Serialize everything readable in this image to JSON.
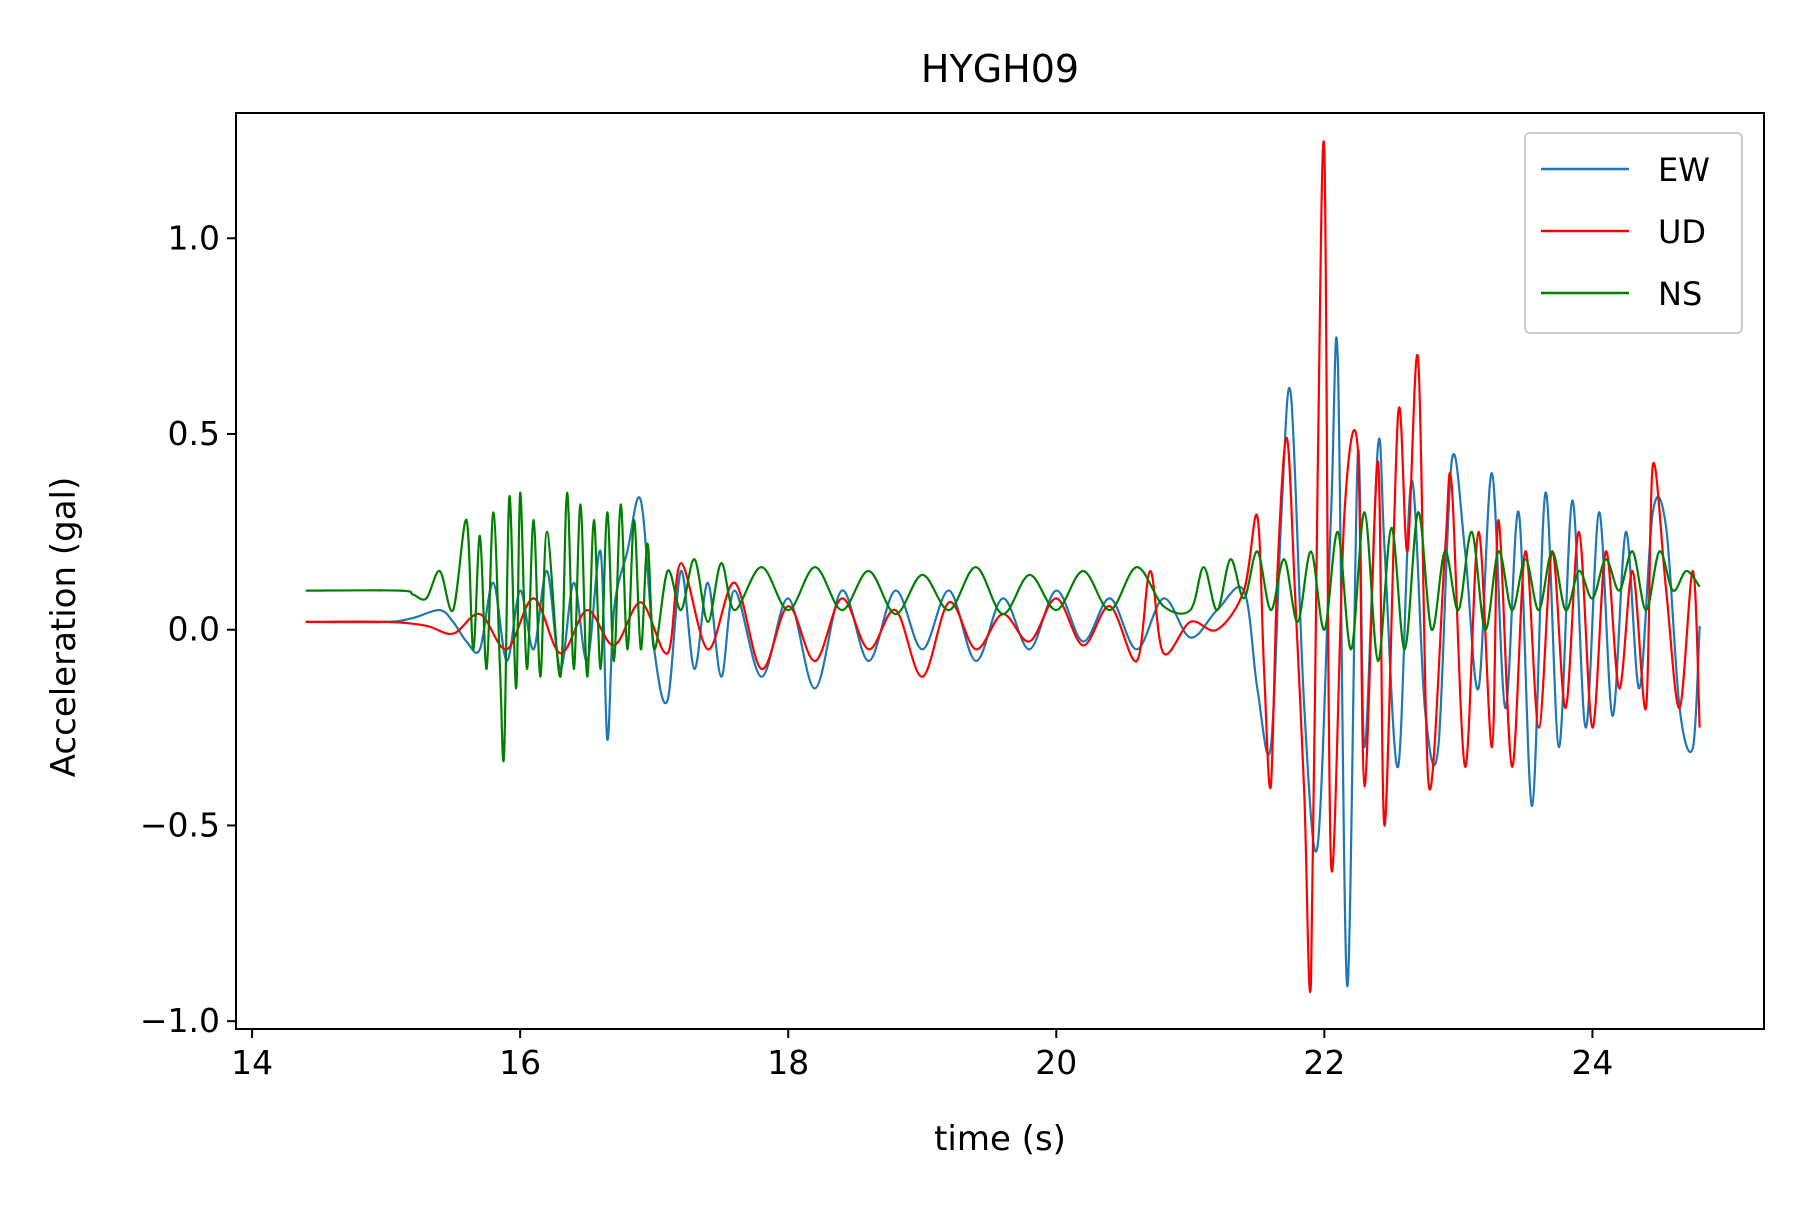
{
  "chart_data": {
    "type": "line",
    "title": "HYGH09",
    "xlabel": "time (s)",
    "ylabel": "Acceleration (gal)",
    "xlim": [
      13.88,
      25.28
    ],
    "ylim": [
      -1.02,
      1.32
    ],
    "xticks": [
      14,
      16,
      18,
      20,
      22,
      24
    ],
    "xtick_labels": [
      "14",
      "16",
      "18",
      "20",
      "22",
      "24"
    ],
    "yticks": [
      -1.0,
      -0.5,
      0.0,
      0.5,
      1.0
    ],
    "ytick_labels": [
      "−1.0",
      "−0.5",
      "0.0",
      "0.5",
      "1.0"
    ],
    "grid": false,
    "legend_position": "top-right",
    "series": [
      {
        "name": "EW",
        "color": "#1f77b4",
        "x": [
          14.4,
          15.0,
          15.2,
          15.4,
          15.5,
          15.6,
          15.7,
          15.8,
          15.9,
          16.0,
          16.1,
          16.2,
          16.3,
          16.4,
          16.5,
          16.6,
          16.65,
          16.7,
          16.8,
          16.9,
          17.0,
          17.1,
          17.2,
          17.3,
          17.4,
          17.5,
          17.6,
          17.8,
          18.0,
          18.2,
          18.4,
          18.6,
          18.8,
          19.0,
          19.2,
          19.4,
          19.6,
          19.8,
          20.0,
          20.2,
          20.4,
          20.6,
          20.8,
          21.0,
          21.2,
          21.4,
          21.5,
          21.6,
          21.68,
          21.75,
          21.85,
          21.95,
          22.05,
          22.1,
          22.17,
          22.25,
          22.3,
          22.4,
          22.45,
          22.55,
          22.65,
          22.75,
          22.85,
          22.95,
          23.05,
          23.15,
          23.25,
          23.35,
          23.45,
          23.55,
          23.65,
          23.75,
          23.85,
          23.95,
          24.05,
          24.15,
          24.25,
          24.35,
          24.45,
          24.55,
          24.65,
          24.75,
          24.8
        ],
        "y": [
          0.02,
          0.02,
          0.03,
          0.05,
          0.02,
          -0.03,
          -0.05,
          0.12,
          -0.08,
          0.1,
          -0.05,
          0.15,
          -0.1,
          0.12,
          -0.08,
          0.2,
          -0.28,
          0.05,
          0.2,
          0.33,
          -0.05,
          -0.18,
          0.15,
          -0.1,
          0.12,
          -0.12,
          0.1,
          -0.12,
          0.08,
          -0.15,
          0.1,
          -0.08,
          0.1,
          -0.05,
          0.1,
          -0.08,
          0.08,
          -0.05,
          0.1,
          -0.03,
          0.08,
          -0.05,
          0.08,
          -0.02,
          0.05,
          0.1,
          -0.15,
          -0.3,
          0.3,
          0.6,
          -0.2,
          -0.55,
          0.3,
          0.69,
          -0.91,
          0.45,
          -0.3,
          0.47,
          0.2,
          -0.35,
          0.38,
          -0.2,
          -0.3,
          0.43,
          0.2,
          -0.15,
          0.4,
          -0.2,
          0.3,
          -0.45,
          0.35,
          -0.3,
          0.33,
          -0.25,
          0.3,
          -0.22,
          0.25,
          -0.15,
          0.3,
          0.26,
          -0.2,
          -0.3,
          0.01
        ]
      },
      {
        "name": "UD",
        "color": "#ff0000",
        "x": [
          14.4,
          15.0,
          15.3,
          15.5,
          15.7,
          15.9,
          16.1,
          16.3,
          16.5,
          16.7,
          16.9,
          17.1,
          17.2,
          17.4,
          17.6,
          17.8,
          18.0,
          18.2,
          18.4,
          18.6,
          18.8,
          19.0,
          19.2,
          19.4,
          19.6,
          19.8,
          20.0,
          20.2,
          20.4,
          20.6,
          20.7,
          20.8,
          21.0,
          21.2,
          21.4,
          21.5,
          21.55,
          21.6,
          21.65,
          21.72,
          21.78,
          21.85,
          21.9,
          21.95,
          22.0,
          22.05,
          22.15,
          22.25,
          22.3,
          22.4,
          22.45,
          22.55,
          22.62,
          22.7,
          22.78,
          22.9,
          22.95,
          23.05,
          23.15,
          23.25,
          23.3,
          23.4,
          23.5,
          23.6,
          23.7,
          23.8,
          23.9,
          24.0,
          24.1,
          24.2,
          24.3,
          24.4,
          24.45,
          24.55,
          24.65,
          24.75,
          24.8
        ],
        "y": [
          0.02,
          0.02,
          0.01,
          -0.01,
          0.04,
          -0.05,
          0.08,
          -0.06,
          0.05,
          -0.04,
          0.07,
          -0.06,
          0.17,
          -0.05,
          0.12,
          -0.1,
          0.06,
          -0.08,
          0.08,
          -0.05,
          0.05,
          -0.12,
          0.07,
          -0.05,
          0.04,
          -0.03,
          0.08,
          -0.04,
          0.06,
          -0.08,
          0.15,
          -0.06,
          0.02,
          0.0,
          0.1,
          0.29,
          -0.1,
          -0.4,
          0.15,
          0.49,
          0.1,
          -0.42,
          -0.9,
          0.4,
          1.22,
          -0.6,
          0.3,
          0.46,
          -0.4,
          0.43,
          -0.5,
          0.55,
          0.2,
          0.69,
          -0.4,
          0.2,
          0.37,
          -0.35,
          0.25,
          -0.3,
          0.28,
          -0.35,
          0.2,
          -0.25,
          0.2,
          -0.2,
          0.25,
          -0.25,
          0.2,
          -0.15,
          0.15,
          -0.2,
          0.42,
          0.1,
          -0.2,
          0.15,
          -0.25
        ]
      },
      {
        "name": "NS",
        "color": "#008000",
        "x": [
          14.4,
          15.1,
          15.2,
          15.3,
          15.4,
          15.5,
          15.6,
          15.65,
          15.7,
          15.75,
          15.8,
          15.85,
          15.88,
          15.92,
          15.97,
          16.0,
          16.05,
          16.1,
          16.15,
          16.2,
          16.3,
          16.35,
          16.4,
          16.45,
          16.5,
          16.55,
          16.6,
          16.65,
          16.7,
          16.75,
          16.8,
          16.85,
          16.9,
          16.95,
          17.0,
          17.1,
          17.2,
          17.3,
          17.4,
          17.5,
          17.6,
          17.8,
          18.0,
          18.2,
          18.4,
          18.6,
          18.8,
          19.0,
          19.2,
          19.4,
          19.6,
          19.8,
          20.0,
          20.2,
          20.4,
          20.6,
          20.8,
          21.0,
          21.1,
          21.2,
          21.3,
          21.4,
          21.5,
          21.6,
          21.7,
          21.8,
          21.9,
          22.0,
          22.1,
          22.2,
          22.3,
          22.4,
          22.5,
          22.6,
          22.7,
          22.8,
          22.9,
          23.0,
          23.1,
          23.2,
          23.3,
          23.4,
          23.5,
          23.6,
          23.7,
          23.8,
          23.9,
          24.0,
          24.1,
          24.2,
          24.3,
          24.4,
          24.5,
          24.6,
          24.7,
          24.8
        ],
        "y": [
          0.1,
          0.1,
          0.09,
          0.08,
          0.15,
          0.05,
          0.28,
          -0.05,
          0.24,
          -0.1,
          0.3,
          -0.1,
          -0.32,
          0.34,
          -0.15,
          0.35,
          -0.1,
          0.28,
          -0.12,
          0.25,
          -0.12,
          0.35,
          -0.1,
          0.32,
          -0.12,
          0.28,
          -0.1,
          0.3,
          -0.08,
          0.32,
          -0.05,
          0.28,
          -0.05,
          0.22,
          -0.05,
          0.15,
          0.05,
          0.18,
          0.02,
          0.17,
          0.05,
          0.16,
          0.05,
          0.16,
          0.05,
          0.15,
          0.04,
          0.14,
          0.05,
          0.16,
          0.04,
          0.14,
          0.05,
          0.15,
          0.05,
          0.16,
          0.06,
          0.05,
          0.16,
          0.05,
          0.18,
          0.08,
          0.2,
          0.05,
          0.18,
          0.02,
          0.2,
          0.0,
          0.25,
          -0.05,
          0.3,
          -0.08,
          0.26,
          -0.05,
          0.3,
          0.0,
          0.2,
          0.05,
          0.25,
          0.0,
          0.2,
          0.05,
          0.18,
          0.05,
          0.2,
          0.05,
          0.15,
          0.08,
          0.18,
          0.1,
          0.2,
          0.05,
          0.2,
          0.1,
          0.15,
          0.11
        ]
      }
    ]
  }
}
